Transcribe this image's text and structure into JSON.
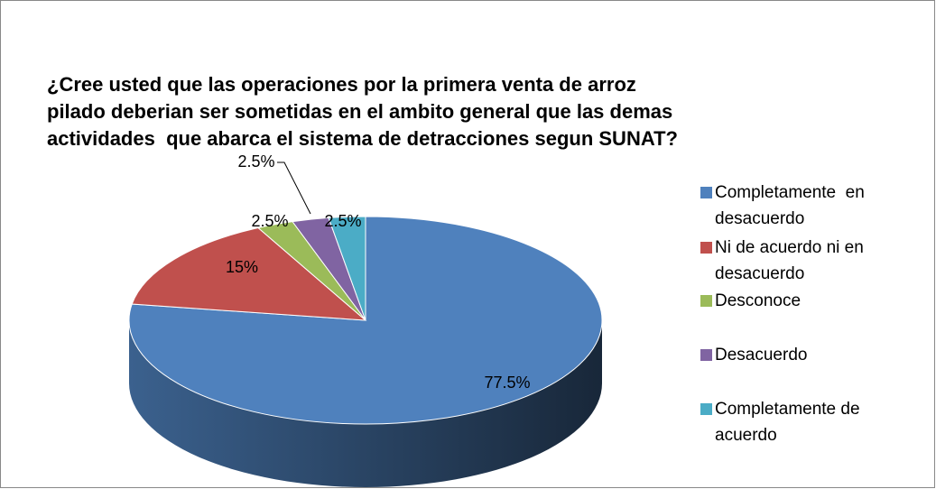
{
  "chart_data": {
    "type": "pie",
    "title": [
      "¿Cree usted que las operaciones por la primera venta de arroz",
      "pilado deberian ser sometidas en el ambito general que las demas",
      "actividades  que abarca el sistema de detracciones segun SUNAT?"
    ],
    "categories": [
      "Completamente  en desacuerdo",
      "Ni de acuerdo ni en desacuerdo",
      "Desconoce",
      "Desacuerdo",
      "Completamente de acuerdo"
    ],
    "values": [
      77.5,
      15,
      2.5,
      2.5,
      2.5
    ],
    "value_labels": [
      "77.5%",
      "15%",
      "2.5%",
      "2.5%",
      "2.5%"
    ],
    "colors": [
      "#4f81bd",
      "#c0504d",
      "#9bbb59",
      "#8064a2",
      "#4bacc6"
    ],
    "legend": "right"
  }
}
